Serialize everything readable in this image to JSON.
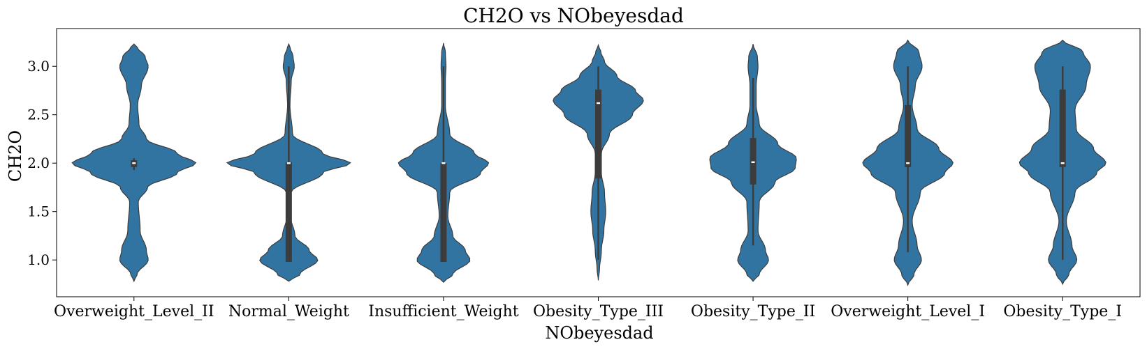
{
  "chart_data": {
    "type": "violin",
    "title": "CH2O vs NObeyesdad",
    "xlabel": "NObeyesdad",
    "ylabel": "CH2O",
    "ylim": [
      0.62,
      3.39
    ],
    "yticks": [
      "1.0",
      "1.5",
      "2.0",
      "2.5",
      "3.0"
    ],
    "colors": {
      "fill": "#3274a1",
      "stroke": "#3c3c3c",
      "box": "#3c3c3c",
      "median": "#ffffff"
    },
    "categories": [
      "Overweight_Level_II",
      "Normal_Weight",
      "Insufficient_Weight",
      "Obesity_Type_III",
      "Obesity_Type_II",
      "Overweight_Level_I",
      "Obesity_Type_I"
    ],
    "violins": [
      {
        "ymin": 0.78,
        "ymax": 3.23,
        "profile": [
          [
            0.78,
            0.0
          ],
          [
            0.85,
            0.05
          ],
          [
            1.0,
            0.23
          ],
          [
            1.1,
            0.2
          ],
          [
            1.3,
            0.1
          ],
          [
            1.6,
            0.07
          ],
          [
            1.75,
            0.22
          ],
          [
            1.9,
            0.7
          ],
          [
            2.0,
            1.0
          ],
          [
            2.1,
            0.7
          ],
          [
            2.25,
            0.2
          ],
          [
            2.4,
            0.08
          ],
          [
            2.6,
            0.06
          ],
          [
            2.8,
            0.12
          ],
          [
            3.0,
            0.23
          ],
          [
            3.1,
            0.18
          ],
          [
            3.2,
            0.05
          ],
          [
            3.23,
            0.0
          ]
        ],
        "whisker": [
          1.93,
          2.05
        ],
        "q1": 1.96,
        "q3": 2.03,
        "median": 2.0
      },
      {
        "ymin": 0.78,
        "ymax": 3.23,
        "profile": [
          [
            0.78,
            0.0
          ],
          [
            0.85,
            0.18
          ],
          [
            1.0,
            0.47
          ],
          [
            1.1,
            0.33
          ],
          [
            1.25,
            0.1
          ],
          [
            1.45,
            0.03
          ],
          [
            1.7,
            0.04
          ],
          [
            1.9,
            0.55
          ],
          [
            2.0,
            1.0
          ],
          [
            2.1,
            0.55
          ],
          [
            2.3,
            0.06
          ],
          [
            2.6,
            0.02
          ],
          [
            2.85,
            0.04
          ],
          [
            3.0,
            0.09
          ],
          [
            3.1,
            0.07
          ],
          [
            3.2,
            0.02
          ],
          [
            3.23,
            0.0
          ]
        ],
        "whisker": [
          0.98,
          3.0
        ],
        "q1": 0.98,
        "q3": 2.01,
        "median": 2.0
      },
      {
        "ymin": 0.77,
        "ymax": 3.24,
        "profile": [
          [
            0.77,
            0.0
          ],
          [
            0.85,
            0.15
          ],
          [
            1.0,
            0.43
          ],
          [
            1.1,
            0.35
          ],
          [
            1.25,
            0.15
          ],
          [
            1.45,
            0.07
          ],
          [
            1.7,
            0.1
          ],
          [
            1.9,
            0.6
          ],
          [
            2.0,
            0.73
          ],
          [
            2.1,
            0.5
          ],
          [
            2.3,
            0.1
          ],
          [
            2.6,
            0.03
          ],
          [
            2.85,
            0.03
          ],
          [
            3.0,
            0.04
          ],
          [
            3.15,
            0.03
          ],
          [
            3.24,
            0.0
          ]
        ],
        "whisker": [
          0.98,
          3.0
        ],
        "q1": 0.98,
        "q3": 2.0,
        "median": 2.0
      },
      {
        "ymin": 0.79,
        "ymax": 3.22,
        "profile": [
          [
            0.79,
            0.0
          ],
          [
            0.9,
            0.02
          ],
          [
            1.1,
            0.05
          ],
          [
            1.3,
            0.09
          ],
          [
            1.5,
            0.12
          ],
          [
            1.7,
            0.1
          ],
          [
            1.9,
            0.05
          ],
          [
            2.1,
            0.05
          ],
          [
            2.3,
            0.18
          ],
          [
            2.5,
            0.55
          ],
          [
            2.65,
            0.73
          ],
          [
            2.75,
            0.6
          ],
          [
            2.9,
            0.3
          ],
          [
            3.05,
            0.1
          ],
          [
            3.15,
            0.04
          ],
          [
            3.22,
            0.0
          ]
        ],
        "whisker": [
          1.0,
          3.0
        ],
        "q1": 1.84,
        "q3": 2.76,
        "median": 2.62
      },
      {
        "ymin": 0.78,
        "ymax": 3.23,
        "profile": [
          [
            0.78,
            0.0
          ],
          [
            0.85,
            0.1
          ],
          [
            1.0,
            0.25
          ],
          [
            1.1,
            0.2
          ],
          [
            1.3,
            0.08
          ],
          [
            1.6,
            0.1
          ],
          [
            1.8,
            0.35
          ],
          [
            1.95,
            0.68
          ],
          [
            2.05,
            0.7
          ],
          [
            2.2,
            0.4
          ],
          [
            2.4,
            0.1
          ],
          [
            2.6,
            0.05
          ],
          [
            2.8,
            0.05
          ],
          [
            3.0,
            0.08
          ],
          [
            3.1,
            0.07
          ],
          [
            3.23,
            0.0
          ]
        ],
        "whisker": [
          1.15,
          2.88
        ],
        "q1": 1.78,
        "q3": 2.26,
        "median": 2.01
      },
      {
        "ymin": 0.74,
        "ymax": 3.27,
        "profile": [
          [
            0.74,
            0.0
          ],
          [
            0.85,
            0.1
          ],
          [
            1.0,
            0.22
          ],
          [
            1.15,
            0.15
          ],
          [
            1.4,
            0.07
          ],
          [
            1.7,
            0.2
          ],
          [
            1.9,
            0.6
          ],
          [
            2.0,
            0.73
          ],
          [
            2.15,
            0.5
          ],
          [
            2.35,
            0.15
          ],
          [
            2.6,
            0.07
          ],
          [
            2.8,
            0.12
          ],
          [
            3.0,
            0.23
          ],
          [
            3.15,
            0.18
          ],
          [
            3.27,
            0.0
          ]
        ],
        "whisker": [
          1.08,
          3.0
        ],
        "q1": 1.96,
        "q3": 2.6,
        "median": 2.0
      },
      {
        "ymin": 0.75,
        "ymax": 3.27,
        "profile": [
          [
            0.75,
            0.0
          ],
          [
            0.85,
            0.1
          ],
          [
            1.0,
            0.23
          ],
          [
            1.15,
            0.15
          ],
          [
            1.4,
            0.06
          ],
          [
            1.7,
            0.2
          ],
          [
            1.9,
            0.55
          ],
          [
            2.0,
            0.7
          ],
          [
            2.15,
            0.5
          ],
          [
            2.35,
            0.22
          ],
          [
            2.55,
            0.2
          ],
          [
            2.8,
            0.38
          ],
          [
            3.0,
            0.45
          ],
          [
            3.15,
            0.33
          ],
          [
            3.27,
            0.0
          ]
        ],
        "whisker": [
          1.0,
          3.0
        ],
        "q1": 1.96,
        "q3": 2.76,
        "median": 2.0
      }
    ]
  }
}
